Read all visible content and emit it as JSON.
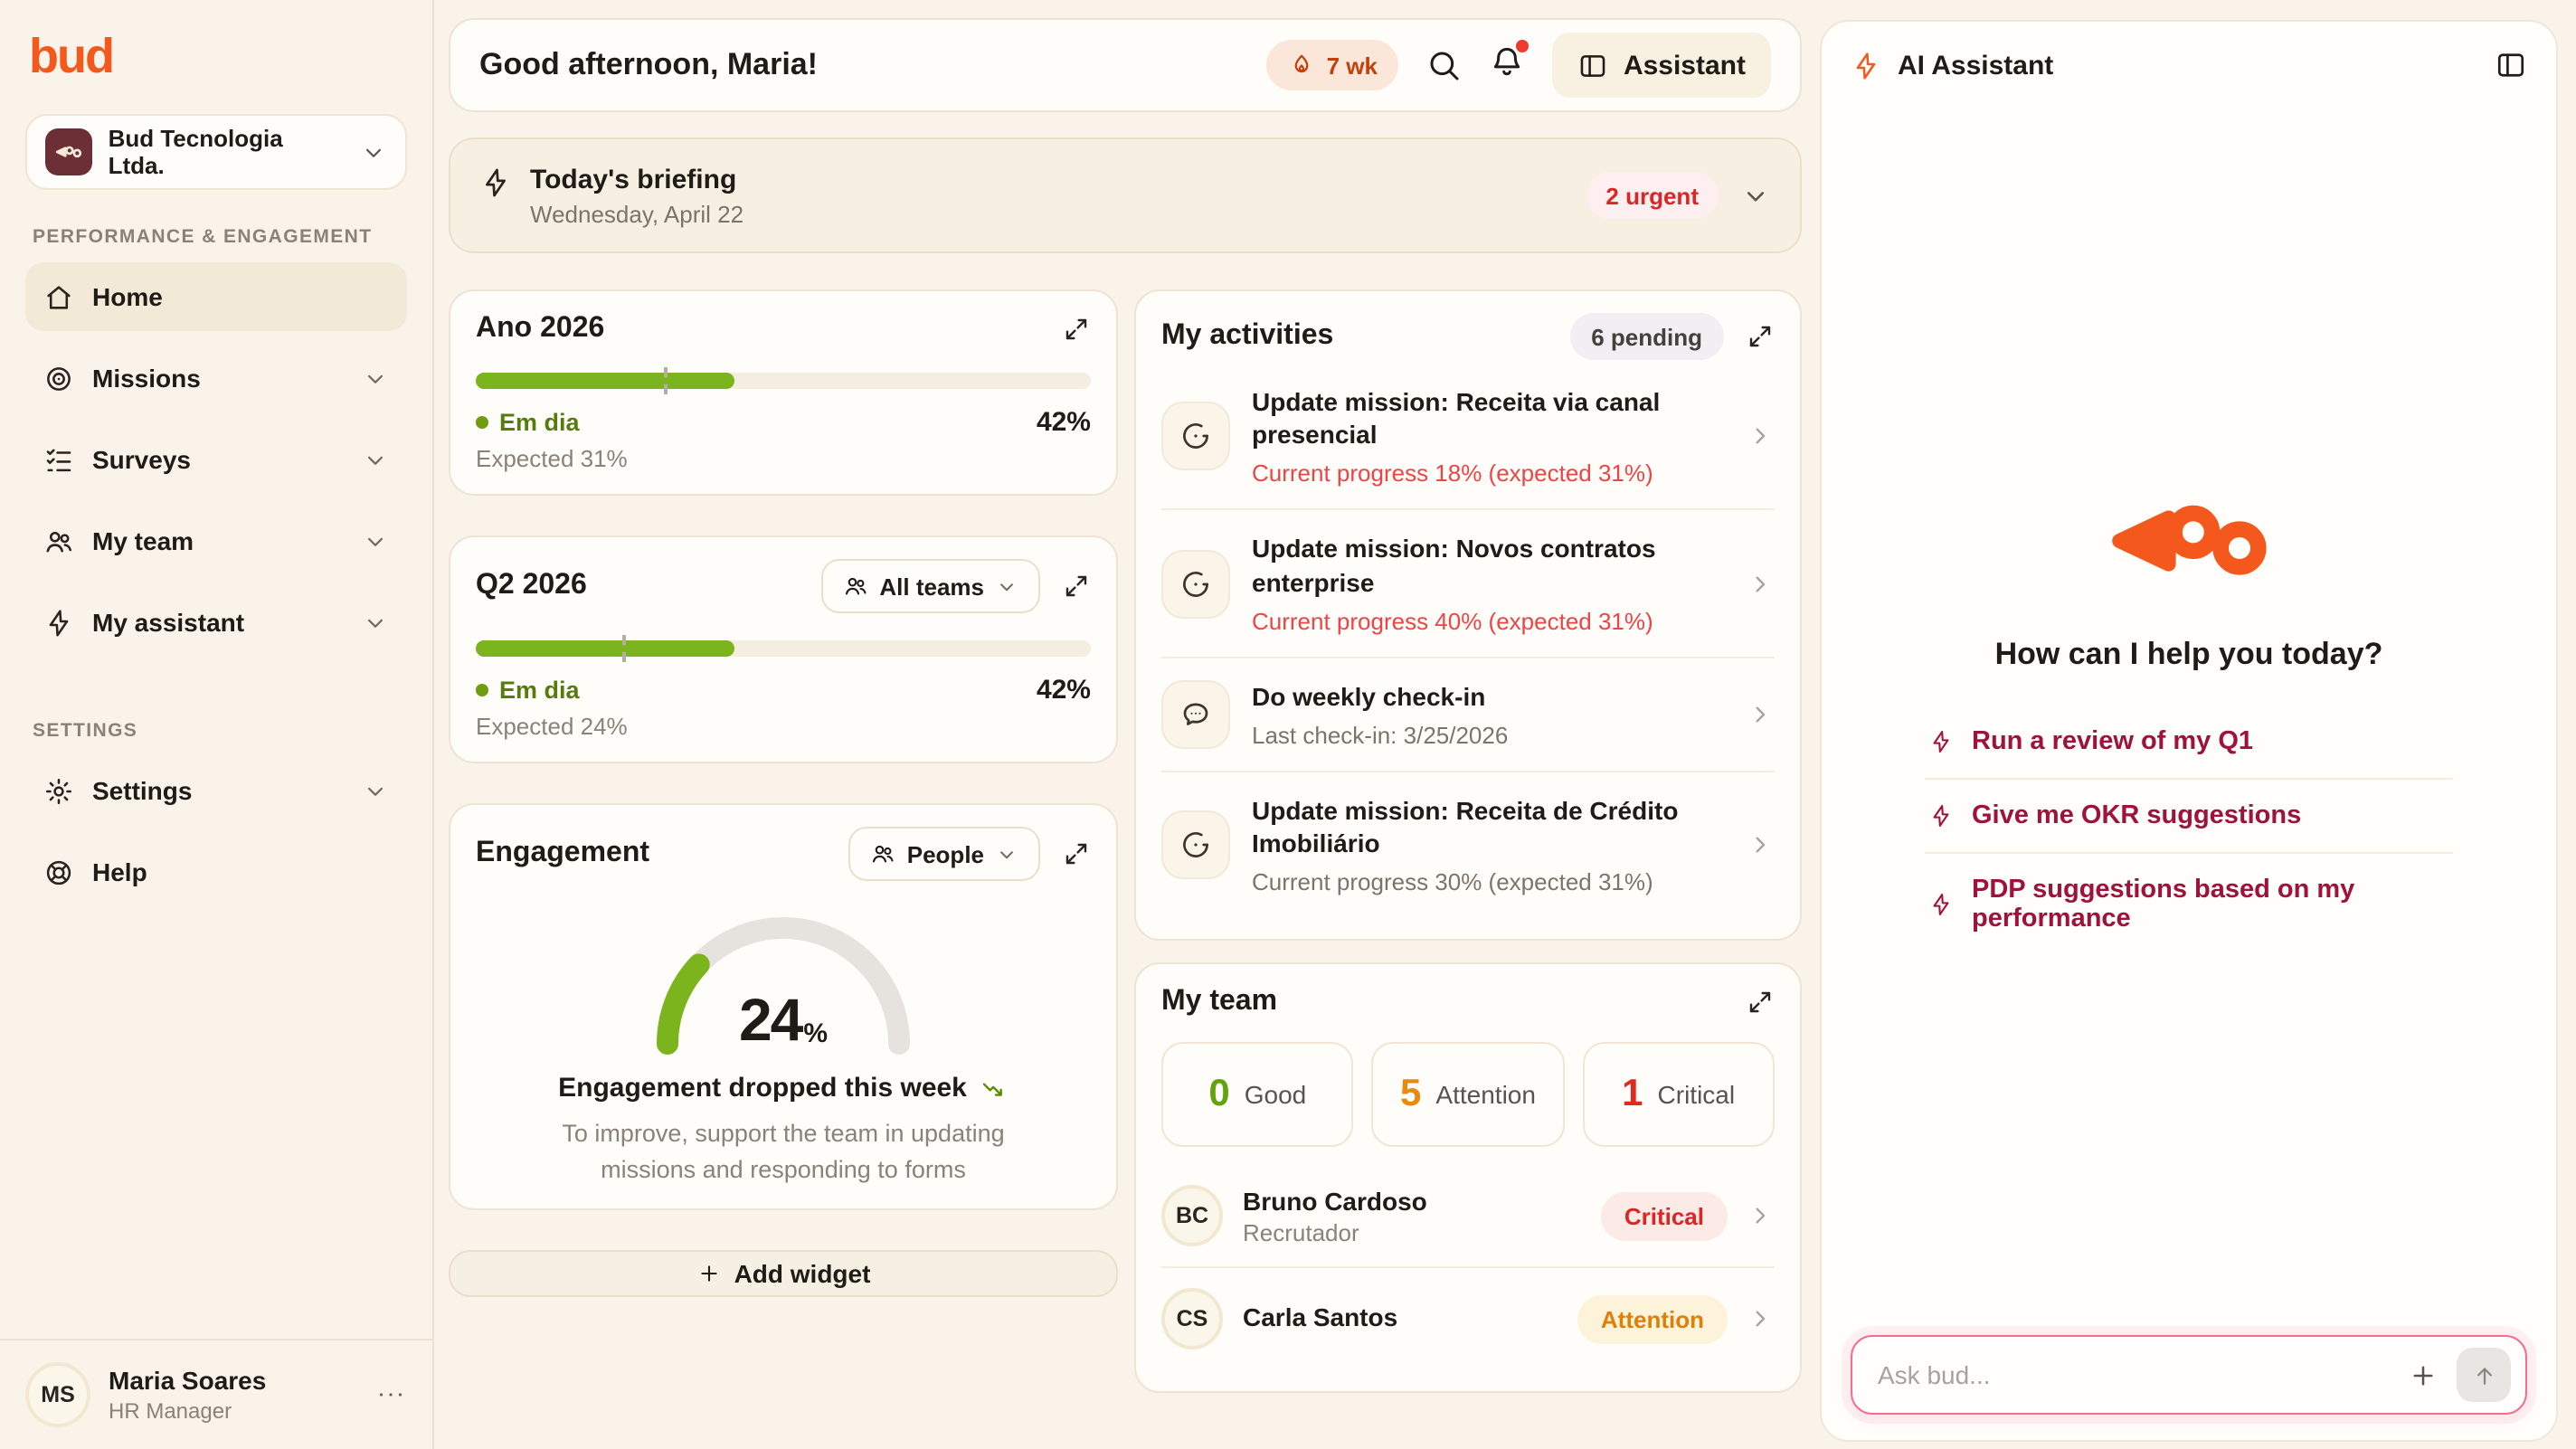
{
  "brand": {
    "wordmark": "bud",
    "accent_orange": "#f4581c"
  },
  "sidebar": {
    "company": "Bud Tecnologia Ltda.",
    "sections": {
      "performance": "PERFORMANCE & ENGAGEMENT",
      "settings": "SETTINGS"
    },
    "nav": [
      {
        "label": "Home"
      },
      {
        "label": "Missions"
      },
      {
        "label": "Surveys"
      },
      {
        "label": "My team"
      },
      {
        "label": "My assistant"
      },
      {
        "label": "Settings"
      },
      {
        "label": "Help"
      }
    ],
    "user": {
      "initials": "MS",
      "name": "Maria Soares",
      "role": "HR Manager"
    }
  },
  "header": {
    "greeting": "Good afternoon, Maria!",
    "streak_label": "7 wk",
    "assistant_label": "Assistant"
  },
  "briefing": {
    "title": "Today's briefing",
    "date": "Wednesday, April 22",
    "urgent_label": "2 urgent"
  },
  "goals": {
    "year": {
      "title": "Ano 2026",
      "status_label": "Em dia",
      "value_label": "42%",
      "expected_label": "Expected 31%",
      "progress_pct": 42,
      "expected_pct": 31
    },
    "quarter": {
      "title": "Q2 2026",
      "filter_label": "All teams",
      "status_label": "Em dia",
      "value_label": "42%",
      "expected_label": "Expected 24%",
      "progress_pct": 42,
      "expected_pct": 24
    }
  },
  "engagement": {
    "title": "Engagement",
    "filter_label": "People",
    "value_pct": 24,
    "value_label": "24",
    "unit": "%",
    "headline": "Engagement dropped this week",
    "hint": "To improve, support the team in updating missions and responding to forms",
    "gauge_color": "#7cb41e"
  },
  "add_widget": {
    "label": "Add widget"
  },
  "activities": {
    "title": "My activities",
    "pending_label": "6 pending",
    "items": [
      {
        "icon": "mission-icon",
        "title": "Update mission: Receita via canal presencial",
        "subtitle": "Current progress 18% (expected 31%)"
      },
      {
        "icon": "mission-icon",
        "title": "Update mission: Novos contratos enterprise",
        "subtitle": "Current progress 40% (expected 31%)"
      },
      {
        "icon": "chat-icon",
        "title": "Do weekly check-in",
        "subtitle": "Last check-in: 3/25/2026"
      },
      {
        "icon": "mission-icon",
        "title": "Update mission: Receita de Crédito Imobiliário",
        "subtitle": "Current progress 30% (expected 31%)"
      }
    ]
  },
  "team": {
    "title": "My team",
    "stats": [
      {
        "count": "0",
        "label": "Good",
        "color": "#63a30d"
      },
      {
        "count": "5",
        "label": "Attention",
        "color": "#ea8a0c"
      },
      {
        "count": "1",
        "label": "Critical",
        "color": "#e02b20"
      }
    ],
    "members": [
      {
        "initials": "BC",
        "name": "Bruno Cardoso",
        "role": "Recrutador",
        "status": "Critical"
      },
      {
        "initials": "CS",
        "name": "Carla Santos",
        "role": "",
        "status": "Attention"
      }
    ]
  },
  "assistant": {
    "title": "AI Assistant",
    "welcome": "How can I help you today?",
    "suggestions": [
      "Run a review of my Q1",
      "Give me OKR suggestions",
      "PDP suggestions based on my performance"
    ],
    "input_placeholder": "Ask bud..."
  },
  "colors": {
    "progress_green": "#7cb41e",
    "alert_red": "#ef4444",
    "suggestion_crimson": "#9f1239",
    "streak_orange": "#c2410c"
  }
}
